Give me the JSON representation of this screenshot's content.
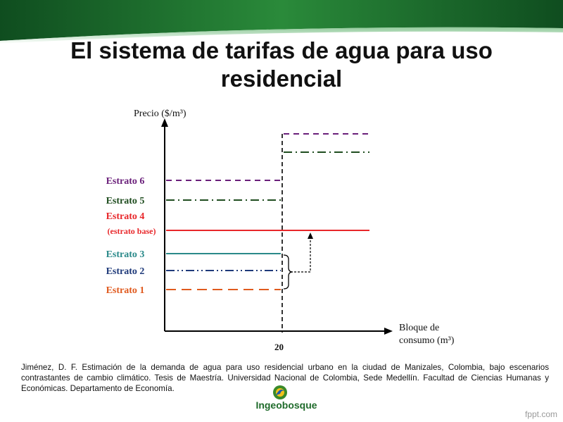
{
  "slide": {
    "title": "El sistema de tarifas de agua para uso residencial",
    "citation": "Jiménez, D. F. Estimación de la demanda de agua para uso residencial urbano en la ciudad de Manizales, Colombia, bajo escenarios contrastantes de cambio climático. Tesis de Maestría. Universidad Nacional de Colombia, Sede Medellín. Facultad de Ciencias Humanas y Económicas. Departamento de Economía.",
    "logo_text": "Ingeobosque",
    "watermark": "fppt.com",
    "colors": {
      "header_green": "#1f6b2b",
      "title_text": "#111111"
    }
  },
  "chart_data": {
    "type": "line",
    "title": "",
    "ylabel": "Precio ($/m³)",
    "xlabel_line1": "Bloque de",
    "xlabel_line2": "consumo (m³)",
    "x_ticks": [
      "20"
    ],
    "threshold_x": 20,
    "series": [
      {
        "name": "Estrato 6",
        "level_before": 6,
        "level_after": 8,
        "color": "#6a1f7a",
        "dash": "dashed"
      },
      {
        "name": "Estrato 5",
        "level_before": 5,
        "level_after": 7,
        "color": "#1f4d1f",
        "dash": "dash-dot"
      },
      {
        "name": "Estrato 4",
        "sublabel": "(estrato base)",
        "level_before": 4,
        "level_after": 4,
        "color": "#e8272a",
        "dash": "solid"
      },
      {
        "name": "Estrato 3",
        "level_before": 3,
        "level_after": null,
        "color": "#2b8a8a",
        "dash": "solid"
      },
      {
        "name": "Estrato 2",
        "level_before": 2,
        "level_after": null,
        "color": "#1f3a7a",
        "dash": "dash-dot-dot"
      },
      {
        "name": "Estrato 1",
        "level_before": 1,
        "level_after": null,
        "color": "#e05a1e",
        "dash": "long-dash"
      }
    ],
    "annotation": "Estratos 1–3 pasan a tarifa de estrato base (Estrato 4) después de 20 m³"
  }
}
